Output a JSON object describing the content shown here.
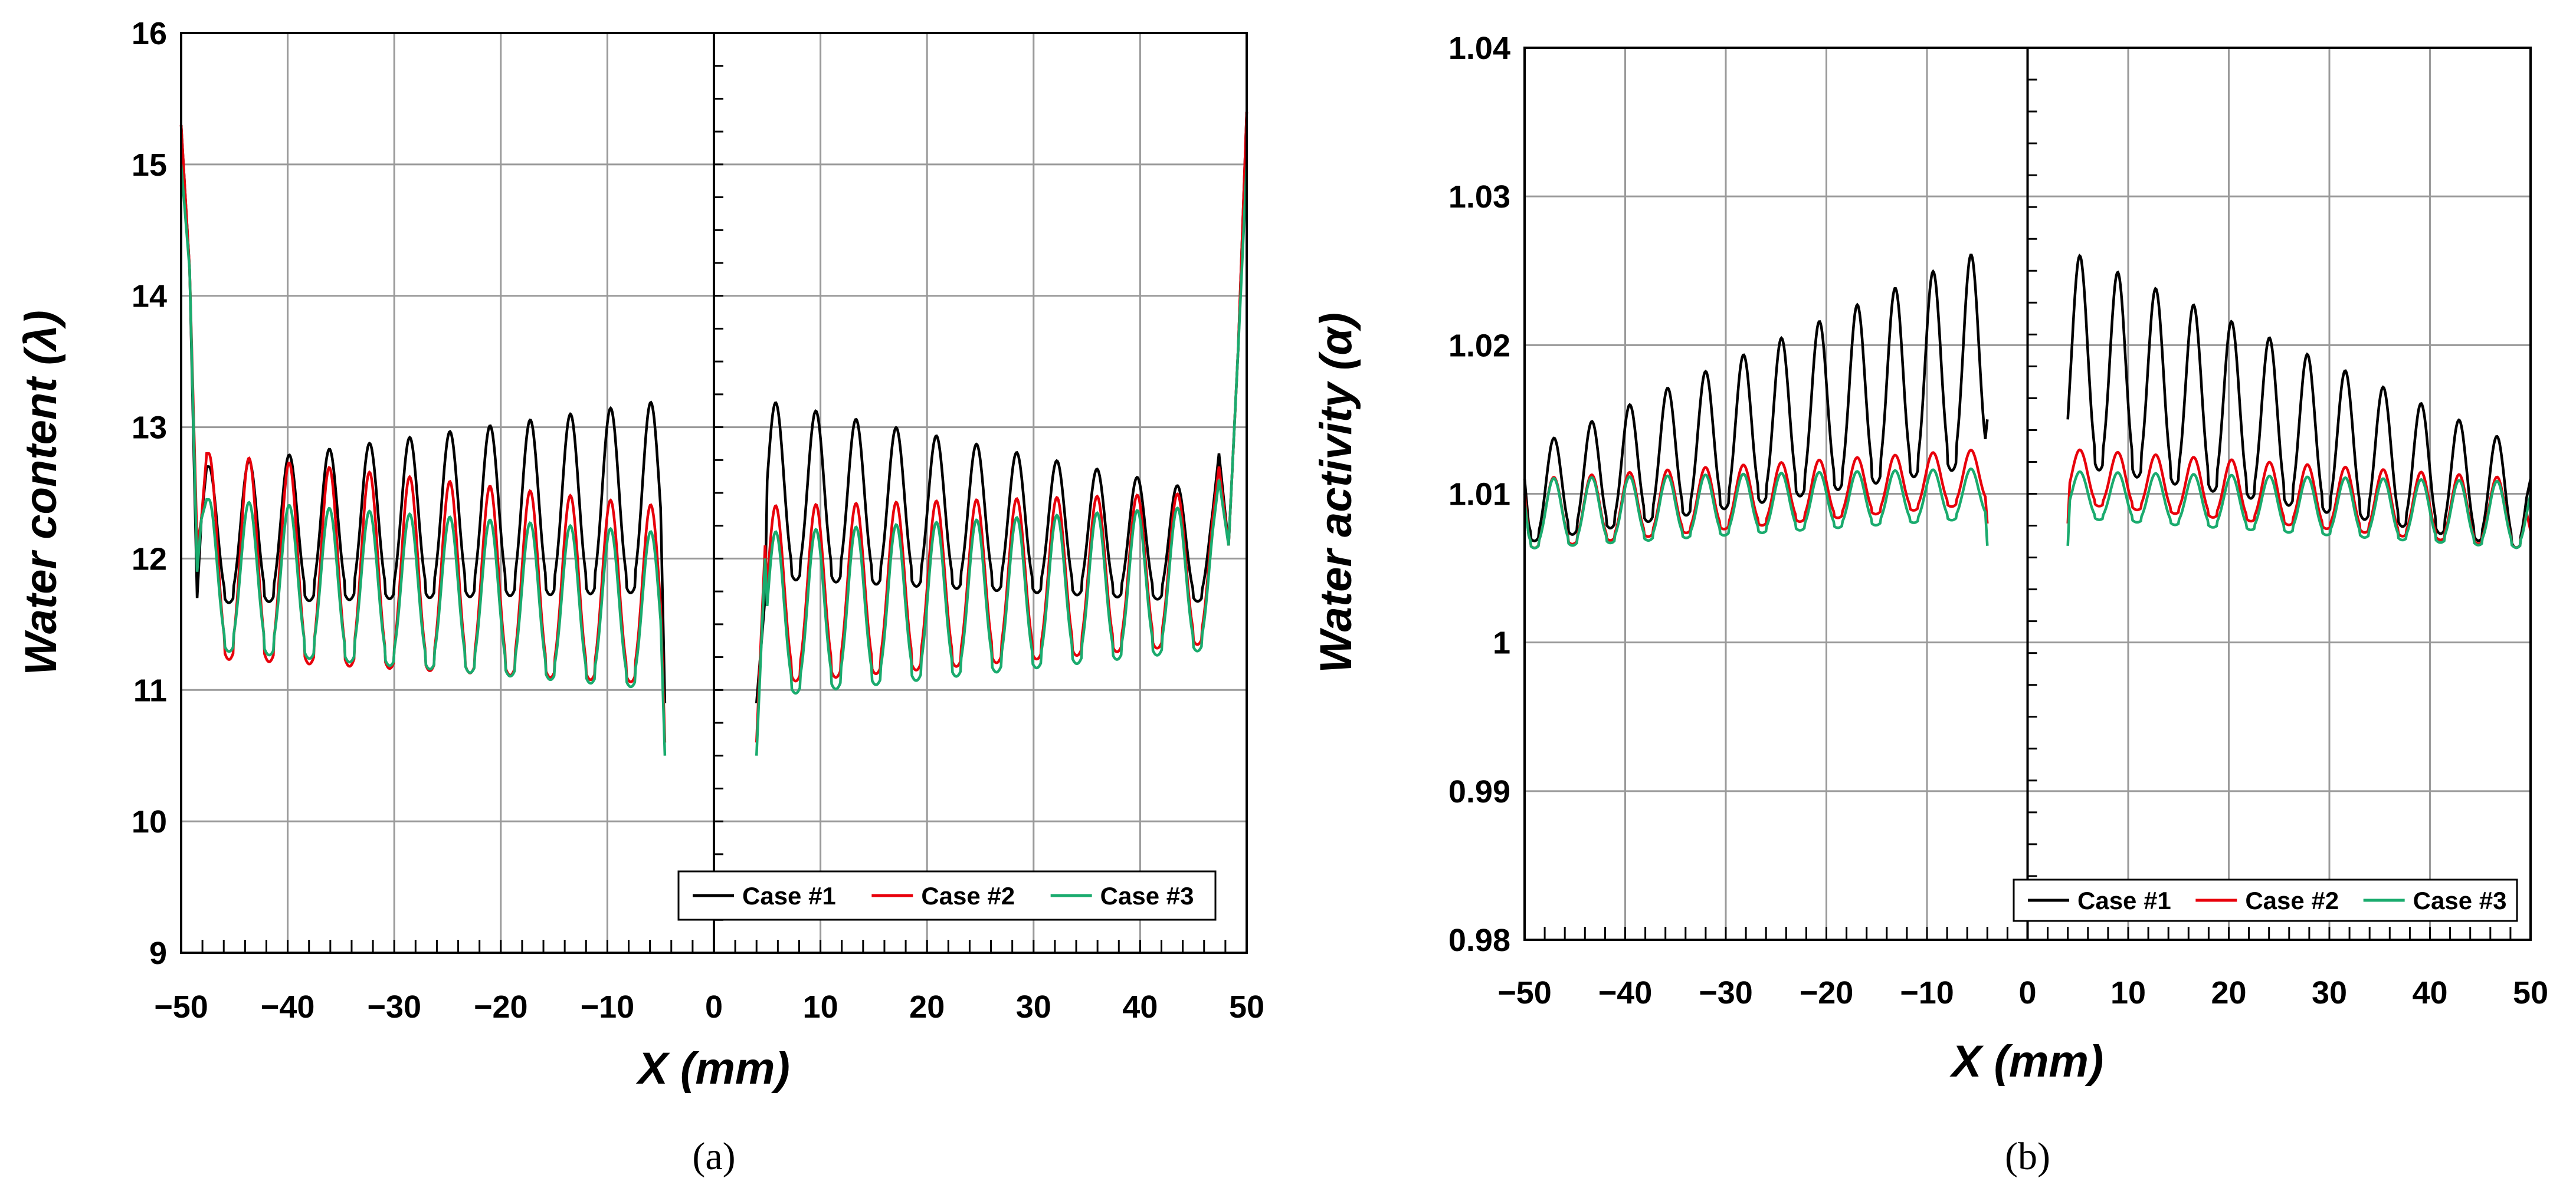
{
  "chart_data": [
    {
      "type": "line",
      "panel": "a",
      "caption": "(a)",
      "xlabel": "X (mm)",
      "ylabel": "Water content (λ)",
      "xlim": [
        -50,
        50
      ],
      "ylim": [
        9,
        16
      ],
      "xticks": [
        -50,
        -40,
        -30,
        -20,
        -10,
        0,
        10,
        20,
        30,
        40,
        50
      ],
      "xtick_labels": [
        "−50",
        "−40",
        "−30",
        "−20",
        "−10",
        "0",
        "10",
        "20",
        "30",
        "40",
        "50"
      ],
      "yticks": [
        9,
        10,
        11,
        12,
        13,
        14,
        15,
        16
      ],
      "ytick_labels": [
        "9",
        "10",
        "11",
        "12",
        "13",
        "14",
        "15",
        "16"
      ],
      "grid": true,
      "legend_position": "bottom-right",
      "left_segment": [
        -50,
        -4
      ],
      "right_segment": [
        4,
        50
      ],
      "series": [
        {
          "name": "Case #1",
          "color": "#000000",
          "left": {
            "edge": [
              15.3,
              11.7
            ],
            "peak_start": 12.7,
            "peak_end": 13.2,
            "trough_start": 11.7,
            "trough_end": 11.8,
            "end": 10.9
          },
          "right": {
            "start": 10.9,
            "edge": [
              11.7,
              12.8
            ],
            "peak_start": 13.2,
            "peak_end": 12.5,
            "trough_start": 11.9,
            "trough_end": 11.7,
            "end_spike": 15.4
          }
        },
        {
          "name": "Case #2",
          "color": "#e8000b",
          "left": {
            "edge": [
              15.3,
              12.1
            ],
            "peak_start": 12.8,
            "peak_end": 12.4,
            "trough_start": 11.3,
            "trough_end": 11.1,
            "end": 10.6
          },
          "right": {
            "start": 10.6,
            "edge": [
              12.1,
              12.7
            ],
            "peak_start": 12.4,
            "peak_end": 12.5,
            "trough_start": 11.1,
            "trough_end": 11.4,
            "end_spike": 15.4
          }
        },
        {
          "name": "Case #3",
          "color": "#1aab6e",
          "left": {
            "edge": [
              15.0,
              11.9
            ],
            "peak_start": 12.45,
            "peak_end": 12.2,
            "trough_start": 11.35,
            "trough_end": 11.05,
            "end": 10.5
          },
          "right": {
            "start": 10.5,
            "edge": [
              12.0,
              12.6
            ],
            "peak_start": 12.2,
            "peak_end": 12.4,
            "trough_start": 11.0,
            "trough_end": 11.35,
            "end_spike": 15.0
          }
        }
      ]
    },
    {
      "type": "line",
      "panel": "b",
      "caption": "(b)",
      "xlabel": "X (mm)",
      "ylabel": "Water activity (α)",
      "xlim": [
        -50,
        50
      ],
      "ylim": [
        0.98,
        1.04
      ],
      "xticks": [
        -50,
        -40,
        -30,
        -20,
        -10,
        0,
        10,
        20,
        30,
        40,
        50
      ],
      "xtick_labels": [
        "−50",
        "−40",
        "−30",
        "−20",
        "−10",
        "0",
        "10",
        "20",
        "30",
        "40",
        "50"
      ],
      "yticks": [
        0.98,
        0.99,
        1.0,
        1.01,
        1.02,
        1.03,
        1.04
      ],
      "ytick_labels": [
        "0.98",
        "0.99",
        "1",
        "1.01",
        "1.02",
        "1.03",
        "1.04"
      ],
      "grid": true,
      "legend_position": "bottom-right",
      "left_segment": [
        -50,
        -4
      ],
      "right_segment": [
        4,
        50
      ],
      "series": [
        {
          "name": "Case #1",
          "color": "#000000",
          "left": {
            "start": 1.011,
            "peak_start": 1.013,
            "peak_end": 1.0265,
            "trough_start": 1.007,
            "trough_end": 1.0125,
            "end": 1.015
          },
          "right": {
            "start": 1.015,
            "peak_start": 1.0263,
            "peak_end": 1.013,
            "trough_start": 1.0125,
            "trough_end": 1.0065,
            "end": 1.011
          }
        },
        {
          "name": "Case #2",
          "color": "#e8000b",
          "left": {
            "start": 1.01,
            "peak_start": 1.011,
            "peak_end": 1.013,
            "trough_start": 1.0065,
            "trough_end": 1.0095,
            "end": 1.008
          },
          "right": {
            "start": 1.008,
            "peak_start": 1.013,
            "peak_end": 1.011,
            "trough_start": 1.0095,
            "trough_end": 1.0065,
            "end": 1.0075
          }
        },
        {
          "name": "Case #3",
          "color": "#1aab6e",
          "left": {
            "start": 1.0095,
            "peak_start": 1.011,
            "peak_end": 1.0117,
            "trough_start": 1.0065,
            "trough_end": 1.0085,
            "end": 1.0065
          },
          "right": {
            "start": 1.0065,
            "peak_start": 1.0115,
            "peak_end": 1.0108,
            "trough_start": 1.0085,
            "trough_end": 1.0065,
            "end": 1.01
          }
        }
      ]
    }
  ]
}
